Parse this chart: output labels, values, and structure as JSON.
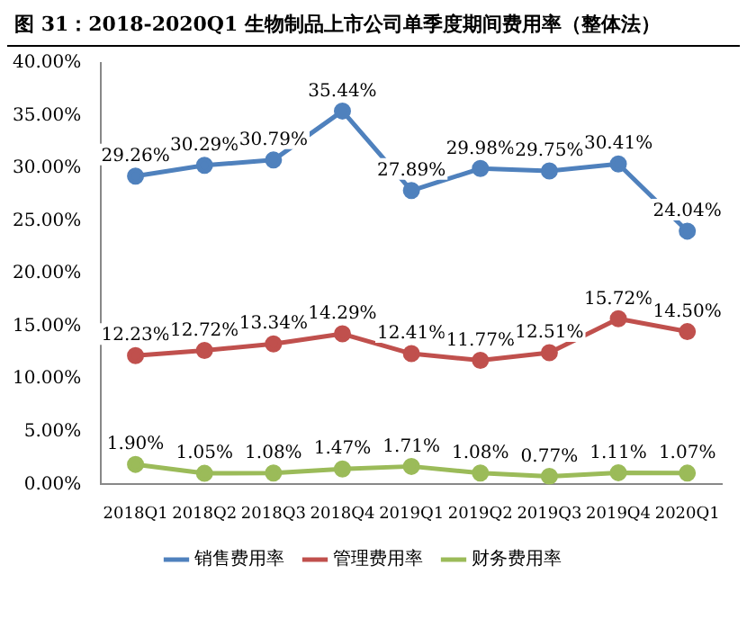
{
  "chart_data": {
    "type": "line",
    "title": "图 31：2018-2020Q1 生物制品上市公司单季度期间费用率（整体法）",
    "categories": [
      "2018Q1",
      "2018Q2",
      "2018Q3",
      "2018Q4",
      "2019Q1",
      "2019Q2",
      "2019Q3",
      "2019Q4",
      "2020Q1"
    ],
    "series": [
      {
        "name": "销售费用率",
        "color": "#4f81bd",
        "values": [
          29.26,
          30.29,
          30.79,
          35.44,
          27.89,
          29.98,
          29.75,
          30.41,
          24.04
        ],
        "value_labels": [
          "29.26%",
          "30.29%",
          "30.79%",
          "35.44%",
          "27.89%",
          "29.98%",
          "29.75%",
          "30.41%",
          "24.04%"
        ]
      },
      {
        "name": "管理费用率",
        "color": "#c0504d",
        "values": [
          12.23,
          12.72,
          13.34,
          14.29,
          12.41,
          11.77,
          12.51,
          15.72,
          14.5
        ],
        "value_labels": [
          "12.23%",
          "12.72%",
          "13.34%",
          "14.29%",
          "12.41%",
          "11.77%",
          "12.51%",
          "15.72%",
          "14.50%"
        ]
      },
      {
        "name": "财务费用率",
        "color": "#9bbb59",
        "values": [
          1.9,
          1.05,
          1.08,
          1.47,
          1.71,
          1.08,
          0.77,
          1.11,
          1.07
        ],
        "value_labels": [
          "1.90%",
          "1.05%",
          "1.08%",
          "1.47%",
          "1.71%",
          "1.08%",
          "0.77%",
          "1.11%",
          "1.07%"
        ]
      }
    ],
    "ylim": [
      0,
      40
    ],
    "yticks": [
      {
        "value": 0,
        "label": "0.00%"
      },
      {
        "value": 5,
        "label": "5.00%"
      },
      {
        "value": 10,
        "label": "10.00%"
      },
      {
        "value": 15,
        "label": "15.00%"
      },
      {
        "value": 20,
        "label": "20.00%"
      },
      {
        "value": 25,
        "label": "25.00%"
      },
      {
        "value": 30,
        "label": "30.00%"
      },
      {
        "value": 35,
        "label": "35.00%"
      },
      {
        "value": 40,
        "label": "40.00%"
      }
    ],
    "grid": false,
    "legend": "bottom",
    "marker": "circle",
    "line_style": "solid"
  }
}
